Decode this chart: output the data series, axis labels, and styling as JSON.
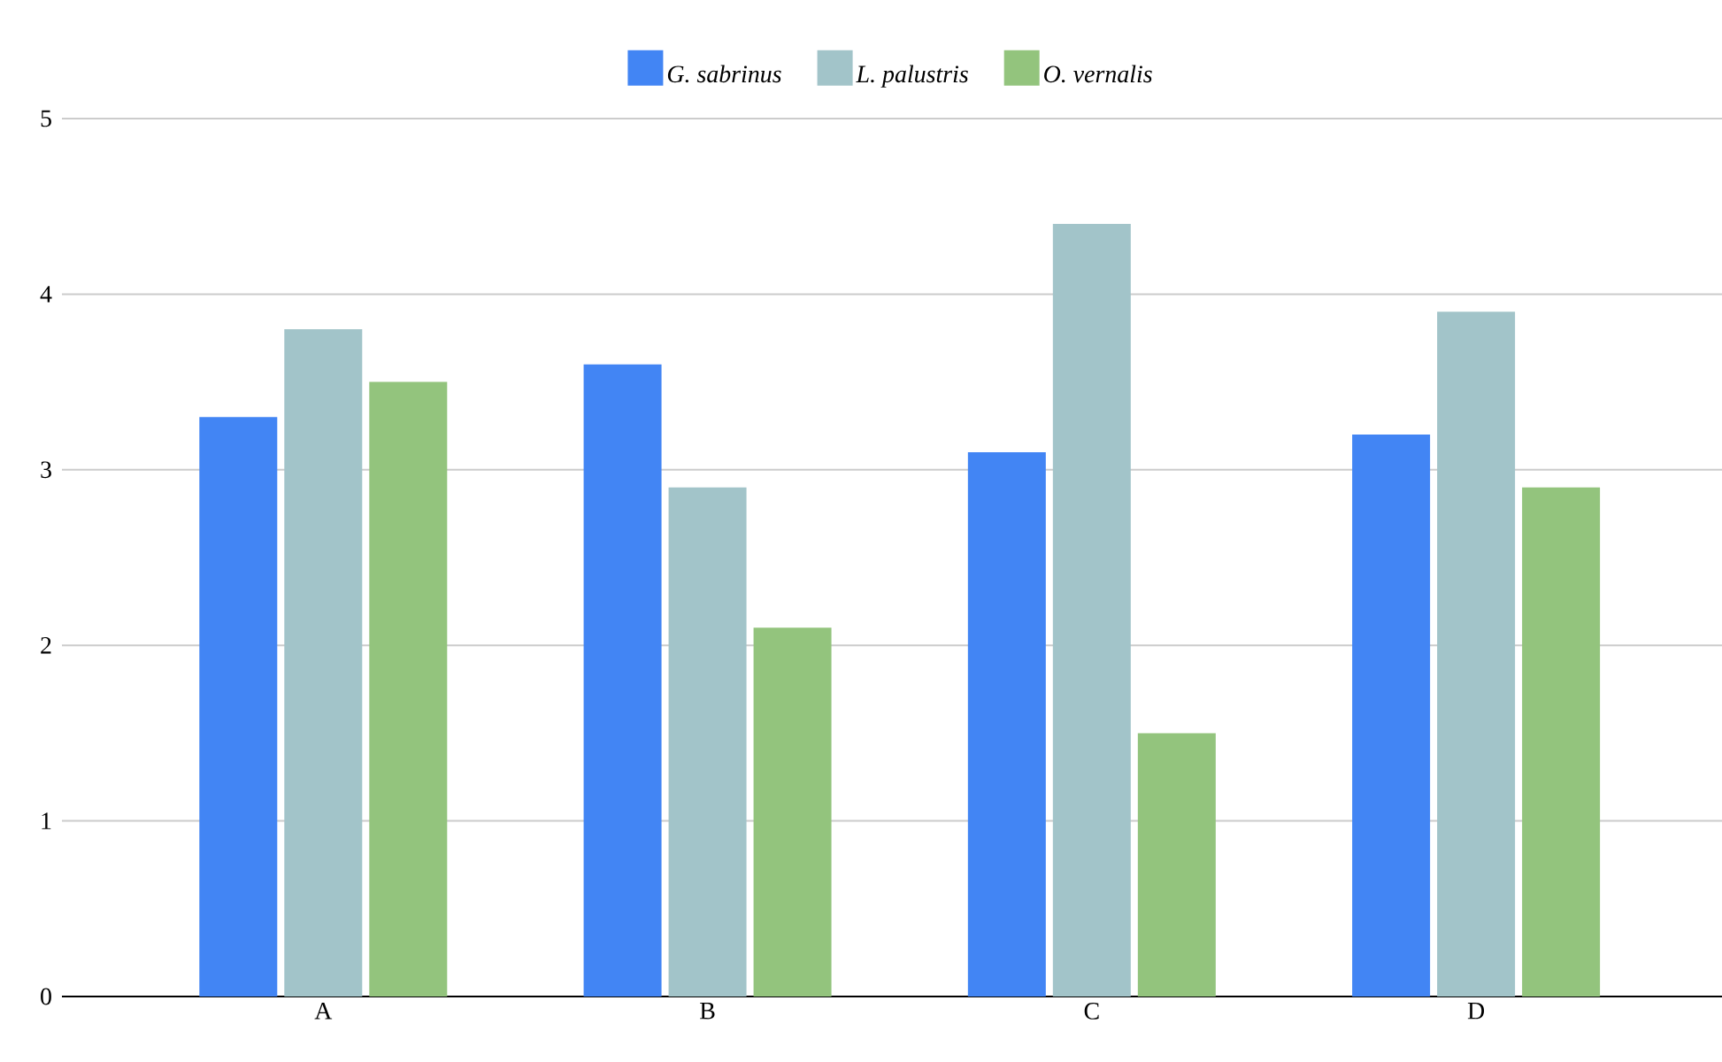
{
  "chart_data": {
    "type": "bar",
    "categories": [
      "A",
      "B",
      "C",
      "D"
    ],
    "series": [
      {
        "name": "G. sabrinus",
        "color": "#4285f4",
        "values": [
          3.3,
          3.6,
          3.1,
          3.2
        ]
      },
      {
        "name": "L. palustris",
        "color": "#a2c4c9",
        "values": [
          3.8,
          2.9,
          4.4,
          3.9
        ]
      },
      {
        "name": "O. vernalis",
        "color": "#93c47d",
        "values": [
          3.5,
          2.1,
          1.5,
          2.9
        ]
      }
    ],
    "ylim": [
      0,
      5
    ],
    "yticks": [
      0,
      1,
      2,
      3,
      4,
      5
    ],
    "grid": "y",
    "legend": "top"
  }
}
